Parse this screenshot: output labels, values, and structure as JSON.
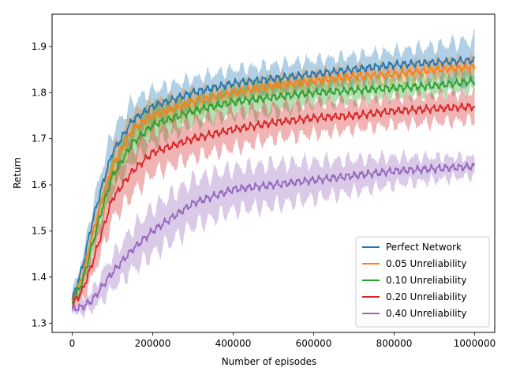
{
  "chart_data": {
    "type": "line",
    "xlabel": "Number of episodes",
    "ylabel": "Return",
    "xlim": [
      -50000,
      1050000
    ],
    "ylim": [
      1.28,
      1.97
    ],
    "xticks": [
      0,
      200000,
      400000,
      600000,
      800000,
      1000000
    ],
    "xtick_labels": [
      "0",
      "200000",
      "400000",
      "600000",
      "800000",
      "1000000"
    ],
    "yticks": [
      1.3,
      1.4,
      1.5,
      1.6,
      1.7,
      1.8,
      1.9
    ],
    "ytick_labels": [
      "1.3",
      "1.4",
      "1.5",
      "1.6",
      "1.7",
      "1.8",
      "1.9"
    ],
    "grid": false,
    "legend_position": "lower-right",
    "x": [
      0,
      25000,
      50000,
      75000,
      100000,
      150000,
      200000,
      300000,
      400000,
      500000,
      600000,
      700000,
      800000,
      900000,
      1000000
    ],
    "series": [
      {
        "name": "Perfect Network",
        "color": "#1f77b4",
        "values": [
          1.35,
          1.42,
          1.52,
          1.6,
          1.67,
          1.74,
          1.77,
          1.8,
          1.82,
          1.83,
          1.84,
          1.85,
          1.86,
          1.865,
          1.87
        ],
        "band": [
          0.015,
          0.02,
          0.03,
          0.04,
          0.045,
          0.04,
          0.035,
          0.03,
          0.03,
          0.03,
          0.03,
          0.03,
          0.03,
          0.035,
          0.045
        ]
      },
      {
        "name": "0.05 Unreliability",
        "color": "#ff7f0e",
        "values": [
          1.345,
          1.4,
          1.49,
          1.57,
          1.64,
          1.72,
          1.75,
          1.78,
          1.8,
          1.815,
          1.825,
          1.835,
          1.84,
          1.85,
          1.855
        ],
        "band": [
          0.012,
          0.02,
          0.025,
          0.03,
          0.035,
          0.035,
          0.03,
          0.025,
          0.02,
          0.02,
          0.02,
          0.02,
          0.02,
          0.02,
          0.02
        ]
      },
      {
        "name": "0.10 Unreliability",
        "color": "#2ca02c",
        "values": [
          1.345,
          1.39,
          1.47,
          1.55,
          1.62,
          1.69,
          1.73,
          1.76,
          1.78,
          1.79,
          1.8,
          1.805,
          1.81,
          1.815,
          1.825
        ],
        "band": [
          0.012,
          0.02,
          0.025,
          0.03,
          0.035,
          0.04,
          0.04,
          0.03,
          0.03,
          0.035,
          0.025,
          0.025,
          0.02,
          0.02,
          0.02
        ]
      },
      {
        "name": "0.20 Unreliability",
        "color": "#d62728",
        "values": [
          1.34,
          1.37,
          1.43,
          1.5,
          1.57,
          1.63,
          1.67,
          1.7,
          1.72,
          1.735,
          1.745,
          1.75,
          1.76,
          1.765,
          1.77
        ],
        "band": [
          0.012,
          0.02,
          0.03,
          0.04,
          0.045,
          0.05,
          0.045,
          0.04,
          0.04,
          0.035,
          0.035,
          0.03,
          0.03,
          0.03,
          0.03
        ]
      },
      {
        "name": "0.40 Unreliability",
        "color": "#9467bd",
        "values": [
          1.33,
          1.335,
          1.35,
          1.38,
          1.41,
          1.46,
          1.5,
          1.56,
          1.59,
          1.6,
          1.61,
          1.62,
          1.63,
          1.635,
          1.64
        ],
        "band": [
          0.01,
          0.015,
          0.02,
          0.03,
          0.035,
          0.045,
          0.05,
          0.05,
          0.045,
          0.045,
          0.04,
          0.035,
          0.03,
          0.025,
          0.02
        ]
      }
    ]
  }
}
